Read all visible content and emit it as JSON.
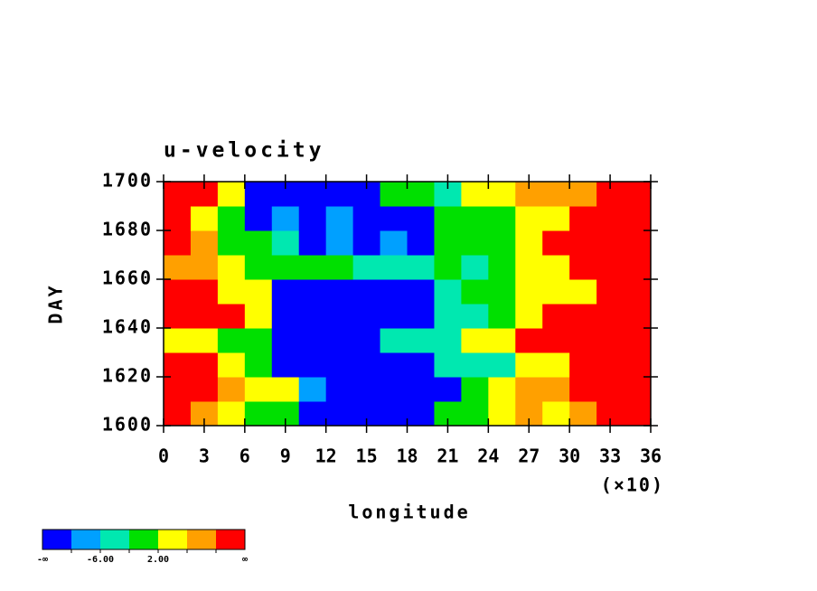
{
  "chart_data": {
    "type": "heatmap",
    "title": "u-velocity",
    "x_label": "longitude",
    "y_label": "DAY",
    "x_multiplier": "(×10)",
    "x": [
      10,
      30,
      50,
      70,
      90,
      110,
      130,
      150,
      170,
      190,
      210,
      230,
      250,
      270,
      290,
      310,
      330,
      350
    ],
    "y": [
      1605,
      1615,
      1625,
      1635,
      1645,
      1655,
      1665,
      1675,
      1685,
      1695
    ],
    "z": [
      [
        12,
        8,
        4,
        0,
        0,
        -12,
        -12,
        -12,
        -12,
        -12,
        0,
        0,
        4,
        8,
        4,
        8,
        12,
        12
      ],
      [
        12,
        12,
        8,
        4,
        4,
        -8,
        -12,
        -12,
        -12,
        -12,
        -12,
        0,
        4,
        8,
        8,
        12,
        12,
        12
      ],
      [
        12,
        12,
        4,
        0,
        -12,
        -12,
        -12,
        -12,
        -12,
        -12,
        -4,
        -4,
        -4,
        4,
        4,
        12,
        12,
        12
      ],
      [
        4,
        4,
        0,
        0,
        -12,
        -12,
        -12,
        -12,
        -4,
        -4,
        -4,
        4,
        4,
        12,
        12,
        12,
        12,
        12
      ],
      [
        12,
        12,
        12,
        4,
        -12,
        -12,
        -12,
        -12,
        -12,
        -12,
        -4,
        -4,
        0,
        4,
        12,
        12,
        12,
        12
      ],
      [
        12,
        12,
        4,
        4,
        -12,
        -12,
        -12,
        -12,
        -12,
        -12,
        -4,
        0,
        0,
        4,
        4,
        4,
        12,
        12
      ],
      [
        8,
        8,
        4,
        0,
        0,
        0,
        0,
        -4,
        -4,
        -4,
        0,
        -4,
        0,
        4,
        4,
        12,
        12,
        12
      ],
      [
        12,
        8,
        0,
        0,
        -4,
        -12,
        -8,
        -12,
        -8,
        -12,
        0,
        0,
        0,
        4,
        12,
        12,
        12,
        12
      ],
      [
        12,
        4,
        0,
        -12,
        -8,
        -12,
        -8,
        -12,
        -12,
        -12,
        0,
        0,
        0,
        4,
        4,
        12,
        12,
        12
      ],
      [
        12,
        12,
        4,
        -12,
        -12,
        -12,
        -12,
        -12,
        0,
        0,
        -4,
        4,
        4,
        8,
        8,
        8,
        12,
        12
      ]
    ],
    "xlim": [
      0,
      360
    ],
    "ylim": [
      1600,
      1700
    ],
    "xticks": [
      {
        "value": 0,
        "label": "0"
      },
      {
        "value": 30,
        "label": "3"
      },
      {
        "value": 60,
        "label": "6"
      },
      {
        "value": 90,
        "label": "9"
      },
      {
        "value": 120,
        "label": "12"
      },
      {
        "value": 150,
        "label": "15"
      },
      {
        "value": 180,
        "label": "18"
      },
      {
        "value": 210,
        "label": "21"
      },
      {
        "value": 240,
        "label": "24"
      },
      {
        "value": 270,
        "label": "27"
      },
      {
        "value": 300,
        "label": "30"
      },
      {
        "value": 330,
        "label": "33"
      },
      {
        "value": 360,
        "label": "36"
      }
    ],
    "yticks": [
      1600,
      1620,
      1640,
      1660,
      1680,
      1700
    ],
    "colorbar": {
      "levels": [
        -10,
        -6,
        -2,
        2,
        6,
        10
      ],
      "colors": [
        "#0000ff",
        "#00a0ff",
        "#00e8b0",
        "#00e000",
        "#ffff00",
        "#ffa000",
        "#ff0000"
      ],
      "labels": [
        {
          "value": -6,
          "label": "-6.00"
        },
        {
          "value": 2,
          "label": "2.00"
        }
      ],
      "low_label": "-∞",
      "high_label": "∞"
    }
  }
}
